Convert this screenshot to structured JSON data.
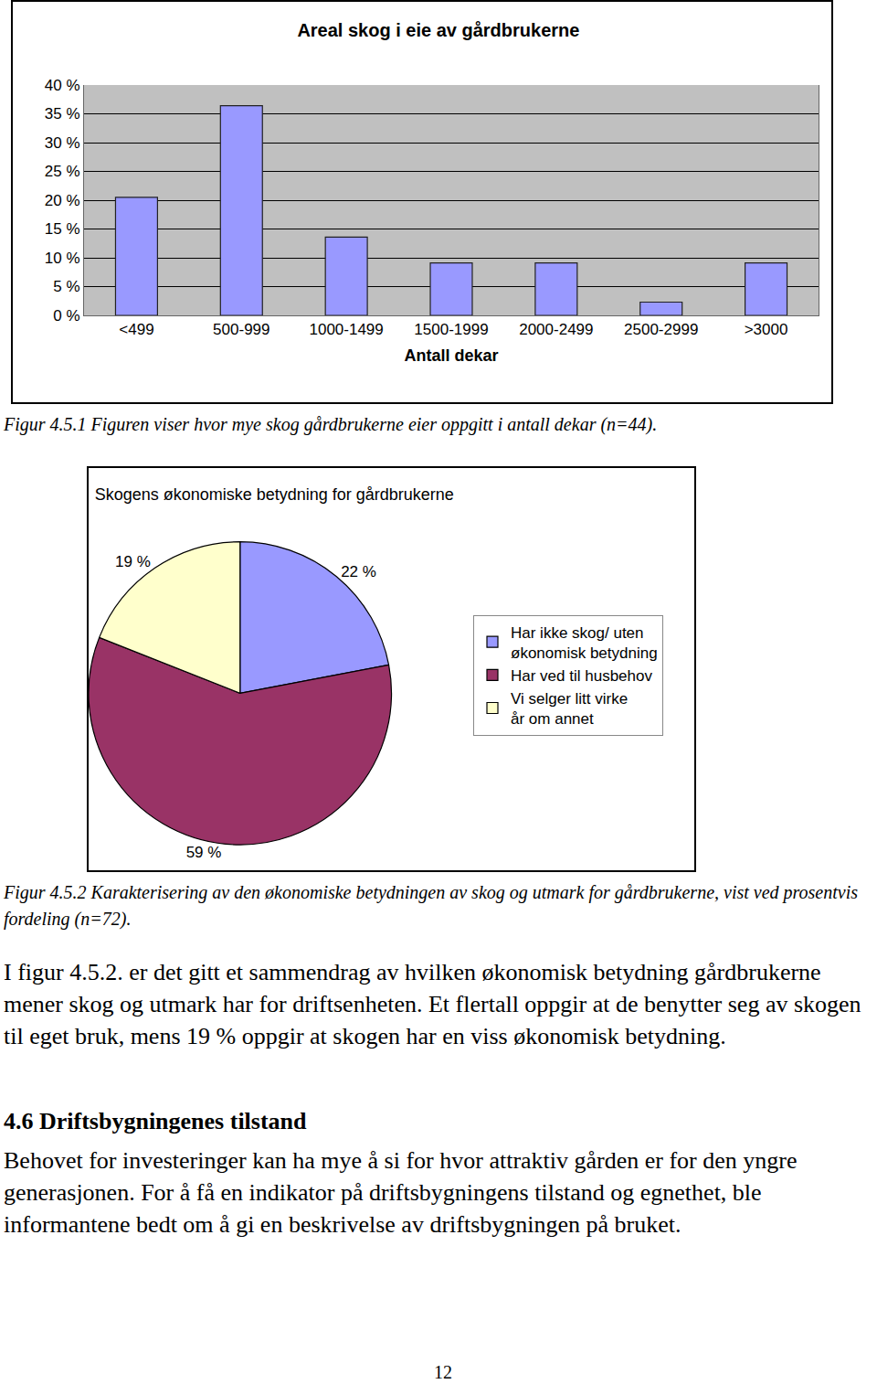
{
  "chart_data": [
    {
      "type": "bar",
      "title": "Areal skog i eie av gårdbrukerne",
      "x_label": "Antall dekar",
      "categories": [
        "<499",
        "500-999",
        "1000-1499",
        "1500-1999",
        "2000-2499",
        "2500-2999",
        ">3000"
      ],
      "values": [
        20.5,
        36.4,
        13.6,
        9.1,
        9.1,
        2.3,
        9.1
      ],
      "color": "#9999ff",
      "ylim": [
        0,
        40
      ],
      "yticks": [
        {
          "value": 0,
          "label": "0 %"
        },
        {
          "value": 5,
          "label": "5 %"
        },
        {
          "value": 10,
          "label": "10 %"
        },
        {
          "value": 15,
          "label": "15 %"
        },
        {
          "value": 20,
          "label": "20 %"
        },
        {
          "value": 25,
          "label": "25 %"
        },
        {
          "value": 30,
          "label": "30 %"
        },
        {
          "value": 35,
          "label": "35 %"
        },
        {
          "value": 40,
          "label": "40 %"
        }
      ],
      "grid": true
    },
    {
      "type": "pie",
      "title": "Skogens økonomiske betydning for gårdbrukerne",
      "categories": [
        "Har ikke skog/ uten økonomisk betydning",
        "Har ved til husbehov",
        "Vi selger litt virke år om annet"
      ],
      "values": [
        22,
        59,
        19
      ],
      "value_labels": [
        "22 %",
        "59 %",
        "19 %"
      ],
      "colors": [
        "#9999ff",
        "#993366",
        "#ffffcc"
      ],
      "data_labels": true,
      "legend": "right"
    }
  ],
  "document": {
    "captions": [
      "Figur 4.5.1 Figuren viser hvor mye skog gårdbrukerne eier oppgitt i antall dekar (n=44).",
      "Figur 4.5.2 Karakterisering av den økonomiske betydningen av skog og utmark for gårdbrukerne, vist ved prosentvis fordeling (n=72)."
    ],
    "paragraph_1": "I figur 4.5.2. er det gitt et sammendrag av hvilken økonomisk betydning gårdbrukerne mener skog og utmark har for driftsenheten. Et flertall oppgir at de benytter seg av skogen til eget bruk, mens 19 % oppgir at skogen har en viss økonomisk betydning.",
    "heading": "4.6 Driftsbygningenes tilstand",
    "paragraph_2": "Behovet for investeringer kan ha mye å si for hvor attraktiv gården er for den yngre generasjonen. For å få en indikator på driftsbygningens tilstand og egnethet, ble informantene bedt om å gi en beskrivelse av driftsbygningen på bruket.",
    "page_number": "12"
  }
}
